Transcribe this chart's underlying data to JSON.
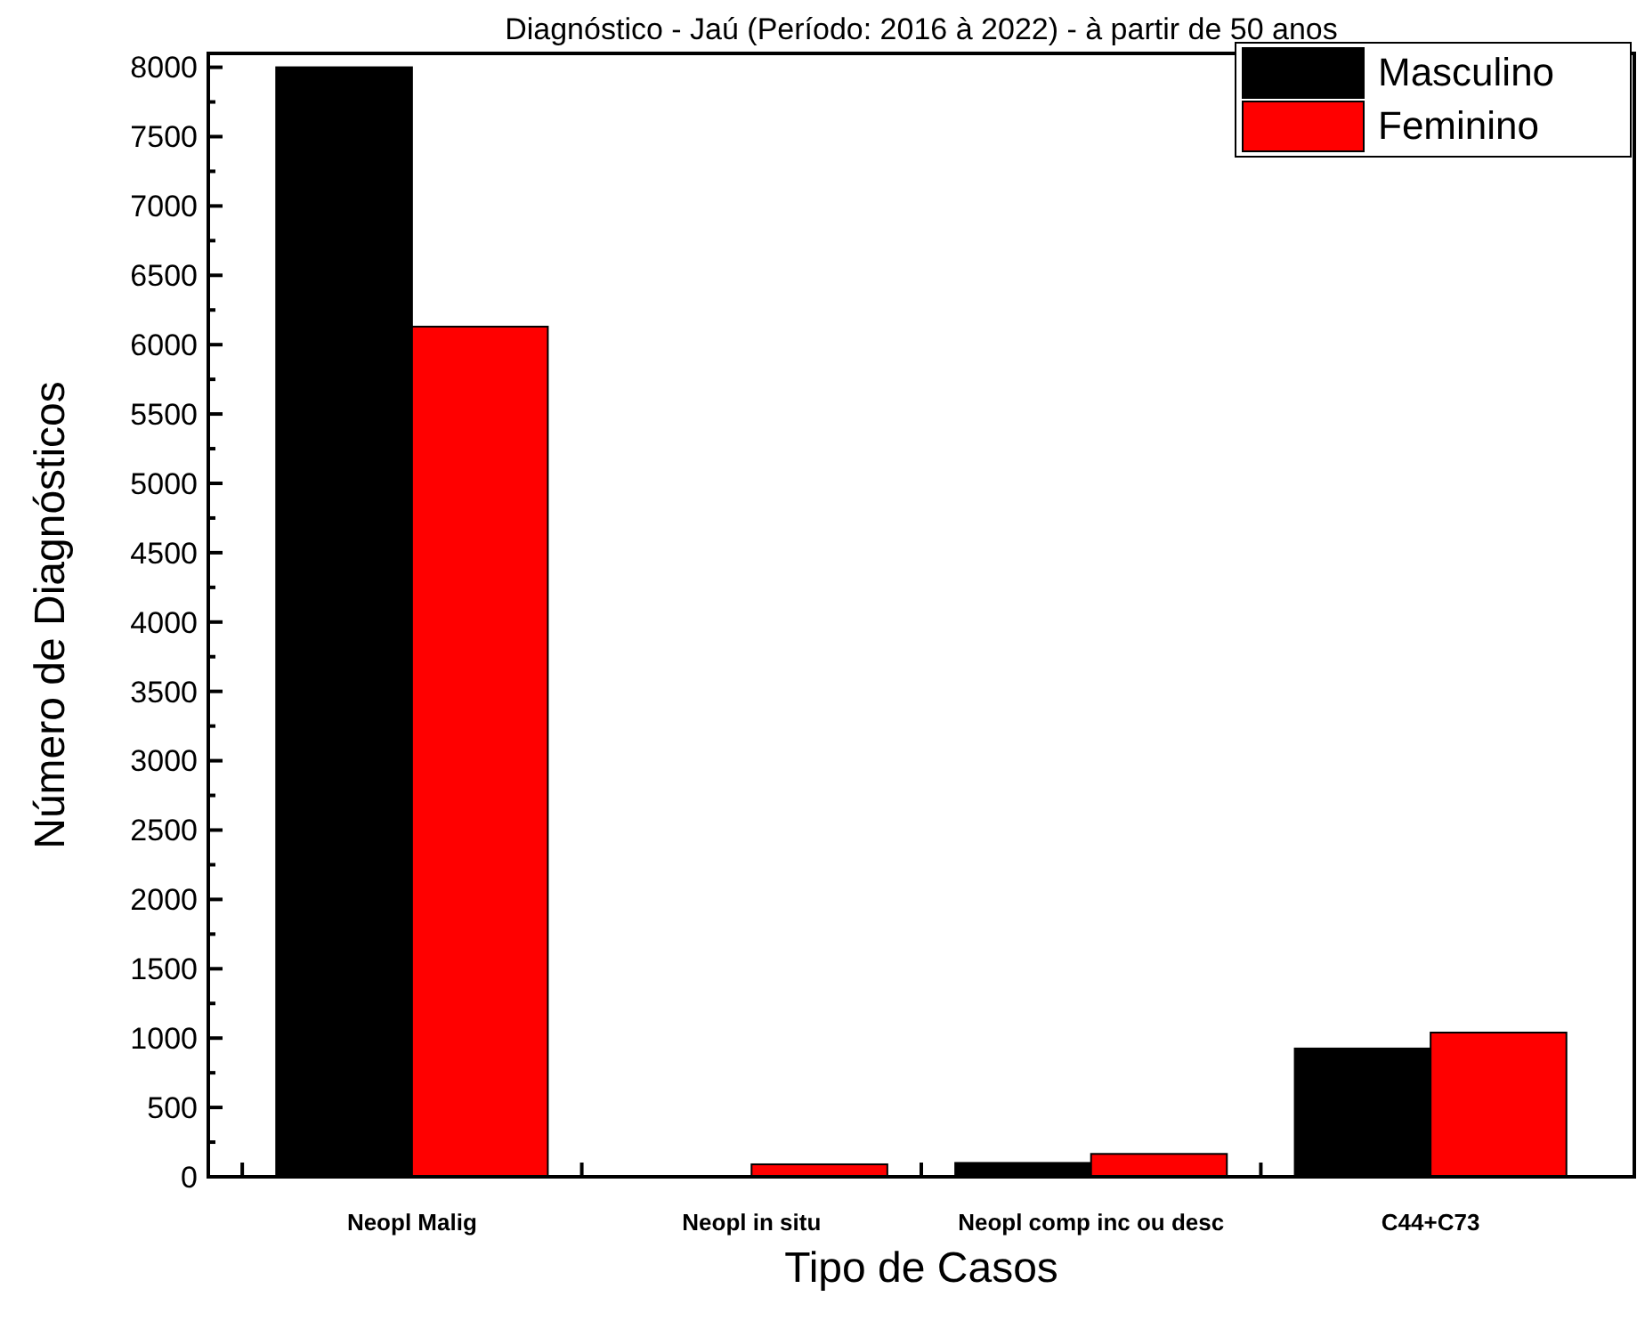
{
  "chart_data": {
    "type": "bar",
    "title": "Diagnóstico - Jaú (Período: 2016 à 2022) - à partir de 50 anos",
    "xlabel": "Tipo de Casos",
    "ylabel": "Número de Diagnósticos",
    "categories": [
      "Neopl Malig",
      "Neopl in situ",
      "Neopl comp inc ou desc",
      "C44+C73"
    ],
    "series": [
      {
        "name": "Masculino",
        "color": "#000000",
        "values": [
          8000,
          0,
          100,
          925
        ]
      },
      {
        "name": "Feminino",
        "color": "#ff0000",
        "values": [
          6130,
          90,
          165,
          1040
        ]
      }
    ],
    "ylim": [
      0,
      8100
    ],
    "yticks": [
      0,
      500,
      1000,
      1500,
      2000,
      2500,
      3000,
      3500,
      4000,
      4500,
      5000,
      5500,
      6000,
      6500,
      7000,
      7500,
      8000
    ],
    "legend": "top right",
    "grid": false
  }
}
